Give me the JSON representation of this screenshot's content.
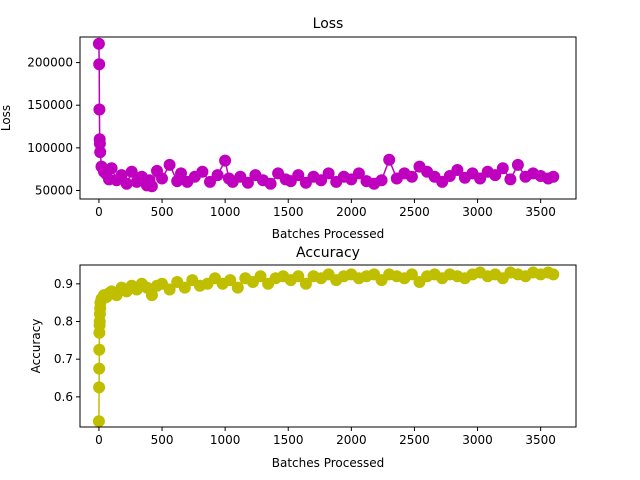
{
  "chart_data": [
    {
      "type": "line",
      "title": "Loss",
      "xlabel": "Batches Processed",
      "ylabel": "Loss",
      "xlim": [
        -150,
        3780
      ],
      "ylim": [
        40000,
        230000
      ],
      "xticks": [
        0,
        500,
        1000,
        1500,
        2000,
        2500,
        3000,
        3500
      ],
      "xtick_labels": [
        "0",
        "500",
        "1000",
        "1500",
        "2000",
        "2500",
        "3000",
        "3500"
      ],
      "yticks": [
        50000,
        100000,
        150000,
        200000
      ],
      "ytick_labels": [
        "50000",
        "100000",
        "150000",
        "200000"
      ],
      "grid": false,
      "marker": "circle",
      "series": [
        {
          "color": "#bf00bf",
          "x": [
            0,
            2,
            4,
            6,
            8,
            10,
            20,
            40,
            60,
            80,
            100,
            140,
            180,
            220,
            260,
            300,
            340,
            380,
            400,
            420,
            460,
            500,
            560,
            620,
            650,
            700,
            760,
            820,
            880,
            940,
            1000,
            1030,
            1060,
            1120,
            1180,
            1240,
            1300,
            1360,
            1420,
            1480,
            1520,
            1580,
            1640,
            1700,
            1760,
            1820,
            1880,
            1940,
            2000,
            2060,
            2120,
            2180,
            2240,
            2300,
            2360,
            2420,
            2480,
            2540,
            2600,
            2660,
            2720,
            2780,
            2840,
            2900,
            2960,
            3020,
            3080,
            3140,
            3200,
            3260,
            3320,
            3380,
            3440,
            3500,
            3560,
            3600
          ],
          "y": [
            222000,
            198000,
            145000,
            110000,
            105000,
            95000,
            78000,
            72000,
            69000,
            63000,
            76000,
            62000,
            68000,
            58000,
            72000,
            60000,
            66000,
            56000,
            62000,
            55000,
            73000,
            64000,
            80000,
            61000,
            70000,
            60000,
            66000,
            72000,
            60000,
            68000,
            85000,
            64000,
            60000,
            66000,
            59000,
            68000,
            62000,
            58000,
            70000,
            63000,
            61000,
            68000,
            59000,
            66000,
            62000,
            70000,
            60000,
            66000,
            63000,
            70000,
            61000,
            58000,
            62000,
            86000,
            64000,
            70000,
            66000,
            78000,
            72000,
            66000,
            60000,
            67000,
            74000,
            65000,
            70000,
            64000,
            72000,
            68000,
            76000,
            63000,
            80000,
            66000,
            70000,
            67000,
            64000,
            66000
          ]
        }
      ]
    },
    {
      "type": "line",
      "title": "Accuracy",
      "xlabel": "Batches Processed",
      "ylabel": "Accuracy",
      "xlim": [
        -150,
        3780
      ],
      "ylim": [
        0.52,
        0.95
      ],
      "xticks": [
        0,
        500,
        1000,
        1500,
        2000,
        2500,
        3000,
        3500
      ],
      "xtick_labels": [
        "0",
        "500",
        "1000",
        "1500",
        "2000",
        "2500",
        "3000",
        "3500"
      ],
      "yticks": [
        0.6,
        0.7,
        0.8,
        0.9
      ],
      "ytick_labels": [
        "0.6",
        "0.7",
        "0.8",
        "0.9"
      ],
      "grid": false,
      "marker": "circle",
      "series": [
        {
          "color": "#bfbf00",
          "x": [
            0,
            1,
            2,
            3,
            4,
            5,
            6,
            8,
            10,
            12,
            20,
            40,
            60,
            80,
            100,
            140,
            180,
            220,
            260,
            300,
            340,
            380,
            420,
            460,
            500,
            560,
            620,
            680,
            740,
            800,
            860,
            920,
            980,
            1040,
            1100,
            1160,
            1220,
            1280,
            1340,
            1400,
            1460,
            1520,
            1580,
            1640,
            1700,
            1760,
            1820,
            1880,
            1940,
            2000,
            2060,
            2120,
            2180,
            2240,
            2300,
            2360,
            2420,
            2480,
            2540,
            2600,
            2660,
            2720,
            2780,
            2840,
            2900,
            2960,
            3020,
            3080,
            3140,
            3200,
            3260,
            3320,
            3380,
            3440,
            3500,
            3560,
            3600
          ],
          "y": [
            0.535,
            0.625,
            0.675,
            0.725,
            0.77,
            0.79,
            0.8,
            0.82,
            0.835,
            0.85,
            0.86,
            0.87,
            0.865,
            0.875,
            0.88,
            0.87,
            0.89,
            0.88,
            0.895,
            0.885,
            0.9,
            0.89,
            0.87,
            0.895,
            0.9,
            0.885,
            0.905,
            0.89,
            0.91,
            0.895,
            0.9,
            0.915,
            0.9,
            0.91,
            0.89,
            0.915,
            0.905,
            0.92,
            0.9,
            0.915,
            0.92,
            0.91,
            0.92,
            0.9,
            0.92,
            0.915,
            0.925,
            0.91,
            0.92,
            0.925,
            0.915,
            0.92,
            0.925,
            0.91,
            0.925,
            0.92,
            0.915,
            0.925,
            0.905,
            0.92,
            0.925,
            0.915,
            0.925,
            0.92,
            0.915,
            0.925,
            0.93,
            0.92,
            0.925,
            0.915,
            0.93,
            0.925,
            0.92,
            0.93,
            0.925,
            0.93,
            0.925
          ]
        }
      ]
    }
  ]
}
